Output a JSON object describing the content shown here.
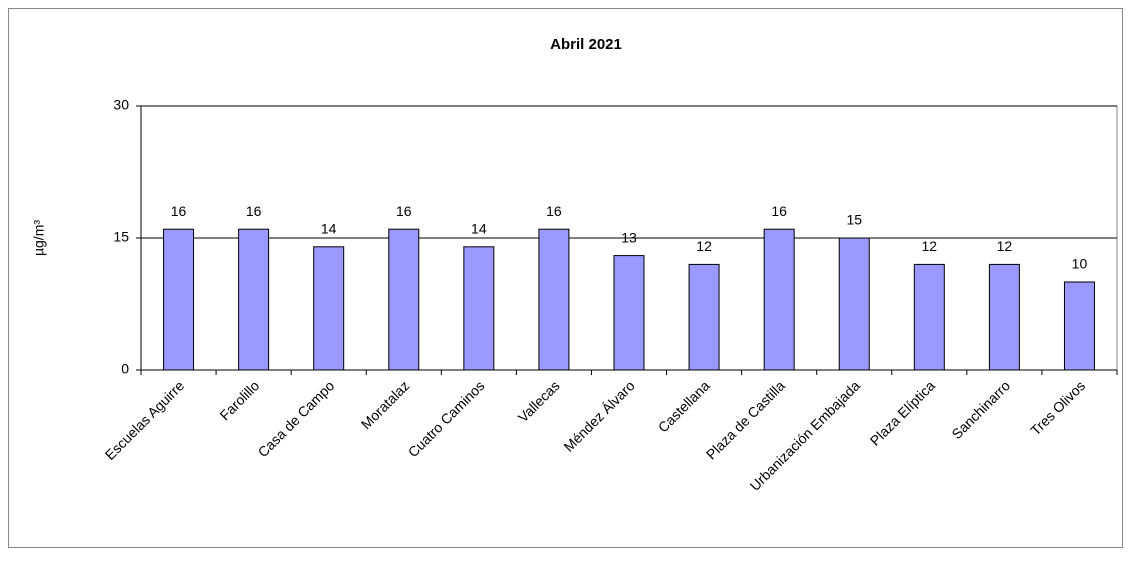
{
  "chart_data": {
    "type": "bar",
    "title": "Abril 2021",
    "y_label": "µg/m³",
    "categories": [
      "Escuelas Aguirre",
      "Farolillo",
      "Casa de Campo",
      "Moratalaz",
      "Cuatro Caminos",
      "Vallecas",
      "Méndez Álvaro",
      "Castellana",
      "Plaza de Castilla",
      "Urbanización Embajada",
      "Plaza Elíptica",
      "Sanchinarro",
      "Tres Olivos"
    ],
    "values": [
      16,
      16,
      14,
      16,
      14,
      16,
      13,
      12,
      16,
      15,
      12,
      12,
      10
    ],
    "color": "#9999ff",
    "ylim": [
      0,
      30
    ],
    "yticks": [
      0,
      15,
      30
    ],
    "grid": true
  }
}
